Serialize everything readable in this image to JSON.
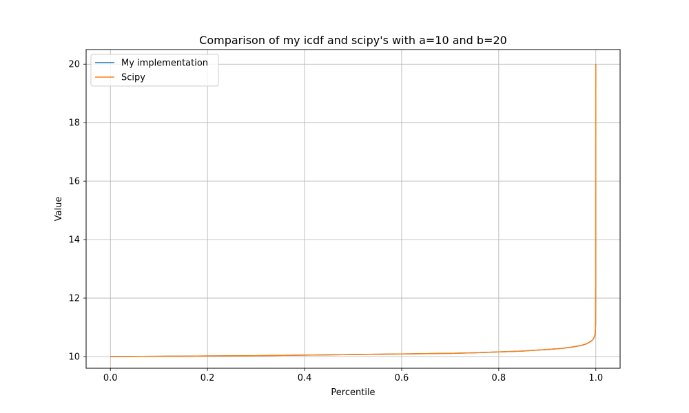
{
  "chart_data": {
    "type": "line",
    "title": "Comparison of my icdf and scipy's with a=10 and b=20",
    "xlabel": "Percentile",
    "ylabel": "Value",
    "xlim": [
      -0.05,
      1.05
    ],
    "ylim": [
      9.6,
      20.5
    ],
    "xticks": [
      0.0,
      0.2,
      0.4,
      0.6,
      0.8,
      1.0
    ],
    "xtick_labels": [
      "0.0",
      "0.2",
      "0.4",
      "0.6",
      "0.8",
      "1.0"
    ],
    "yticks": [
      10,
      12,
      14,
      16,
      18,
      20
    ],
    "ytick_labels": [
      "10",
      "12",
      "14",
      "16",
      "18",
      "20"
    ],
    "grid": true,
    "legend_position": "upper-left",
    "x": [
      0.0,
      0.1,
      0.2,
      0.3,
      0.4,
      0.5,
      0.6,
      0.7,
      0.75,
      0.8,
      0.85,
      0.9,
      0.93,
      0.95,
      0.97,
      0.98,
      0.99,
      0.995,
      0.998,
      0.999,
      0.9995,
      0.9998,
      1.0
    ],
    "series": [
      {
        "name": "My implementation",
        "color": "#1f77b4",
        "values": [
          10.0,
          10.01,
          10.02,
          10.03,
          10.05,
          10.07,
          10.09,
          10.11,
          10.13,
          10.16,
          10.19,
          10.24,
          10.28,
          10.32,
          10.38,
          10.43,
          10.52,
          10.6,
          10.72,
          10.85,
          11.1,
          12.5,
          20.0
        ]
      },
      {
        "name": "Scipy",
        "color": "#ff7f0e",
        "values": [
          10.0,
          10.01,
          10.02,
          10.03,
          10.05,
          10.07,
          10.09,
          10.11,
          10.13,
          10.16,
          10.19,
          10.24,
          10.28,
          10.32,
          10.38,
          10.43,
          10.52,
          10.6,
          10.72,
          10.85,
          11.1,
          12.5,
          20.0
        ]
      }
    ]
  }
}
